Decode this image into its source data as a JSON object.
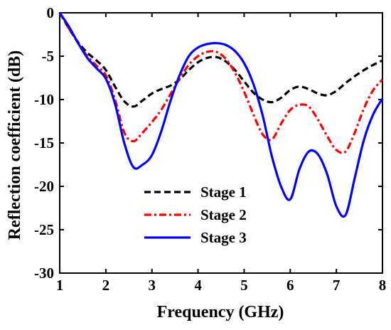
{
  "chart_data": {
    "type": "line",
    "title": "",
    "xlabel": "Frequency (GHz)",
    "ylabel": "Reflection coefficient (dB)",
    "xlim": [
      1,
      8
    ],
    "ylim": [
      -30,
      0
    ],
    "xticks": [
      1,
      2,
      3,
      4,
      5,
      6,
      7,
      8
    ],
    "yticks": [
      0,
      -5,
      -10,
      -15,
      -20,
      -25,
      -30
    ],
    "grid": false,
    "legend_position": "bottom-left",
    "series": [
      {
        "name": "Stage 1",
        "color": "#000000",
        "style": "dashed",
        "x": [
          1.0,
          1.2,
          1.4,
          1.6,
          1.8,
          2.0,
          2.2,
          2.4,
          2.6,
          2.8,
          3.0,
          3.2,
          3.4,
          3.6,
          3.8,
          4.0,
          4.2,
          4.4,
          4.6,
          4.8,
          5.0,
          5.2,
          5.4,
          5.6,
          5.8,
          6.0,
          6.2,
          6.4,
          6.6,
          6.8,
          7.0,
          7.2,
          7.4,
          7.6,
          7.8,
          8.0
        ],
        "y": [
          0.0,
          -1.8,
          -3.4,
          -4.6,
          -5.5,
          -6.6,
          -8.5,
          -10.2,
          -10.8,
          -10.1,
          -9.3,
          -8.8,
          -8.4,
          -7.7,
          -6.6,
          -5.7,
          -5.2,
          -5.1,
          -5.6,
          -6.6,
          -7.9,
          -9.2,
          -10.0,
          -10.3,
          -9.8,
          -8.9,
          -8.5,
          -8.8,
          -9.3,
          -9.5,
          -9.0,
          -8.1,
          -7.3,
          -6.6,
          -6.0,
          -5.5
        ]
      },
      {
        "name": "Stage 2",
        "color": "#ff0000",
        "style": "dash-dot",
        "x": [
          1.0,
          1.2,
          1.4,
          1.6,
          1.8,
          2.0,
          2.2,
          2.4,
          2.6,
          2.8,
          3.0,
          3.2,
          3.4,
          3.6,
          3.8,
          4.0,
          4.2,
          4.4,
          4.6,
          4.8,
          5.0,
          5.2,
          5.4,
          5.6,
          5.8,
          6.0,
          6.2,
          6.4,
          6.6,
          6.8,
          7.0,
          7.2,
          7.4,
          7.6,
          7.8,
          8.0
        ],
        "y": [
          0.0,
          -1.8,
          -3.5,
          -5.0,
          -6.1,
          -7.2,
          -10.0,
          -13.8,
          -14.8,
          -13.8,
          -12.6,
          -11.2,
          -9.4,
          -7.6,
          -6.0,
          -5.0,
          -4.5,
          -4.5,
          -5.3,
          -6.9,
          -9.1,
          -11.7,
          -14.0,
          -14.6,
          -12.8,
          -11.2,
          -10.6,
          -10.8,
          -12.3,
          -14.2,
          -15.8,
          -16.0,
          -13.8,
          -11.0,
          -8.9,
          -7.7
        ]
      },
      {
        "name": "Stage 3",
        "color": "#0000ff",
        "style": "solid",
        "x": [
          1.0,
          1.2,
          1.4,
          1.6,
          1.8,
          2.0,
          2.2,
          2.4,
          2.6,
          2.8,
          3.0,
          3.2,
          3.4,
          3.6,
          3.8,
          4.0,
          4.2,
          4.4,
          4.6,
          4.8,
          5.0,
          5.2,
          5.4,
          5.6,
          5.8,
          6.0,
          6.2,
          6.4,
          6.6,
          6.8,
          7.0,
          7.2,
          7.4,
          7.6,
          7.8,
          8.0
        ],
        "y": [
          0.0,
          -1.6,
          -3.5,
          -5.2,
          -6.4,
          -7.6,
          -10.5,
          -15.0,
          -17.8,
          -17.5,
          -16.4,
          -13.7,
          -10.2,
          -7.2,
          -5.0,
          -4.0,
          -3.6,
          -3.5,
          -3.7,
          -4.4,
          -5.8,
          -8.2,
          -11.8,
          -16.5,
          -20.0,
          -21.5,
          -18.0,
          -16.0,
          -16.3,
          -18.6,
          -22.3,
          -23.3,
          -19.0,
          -14.6,
          -11.7,
          -9.9
        ]
      }
    ]
  }
}
